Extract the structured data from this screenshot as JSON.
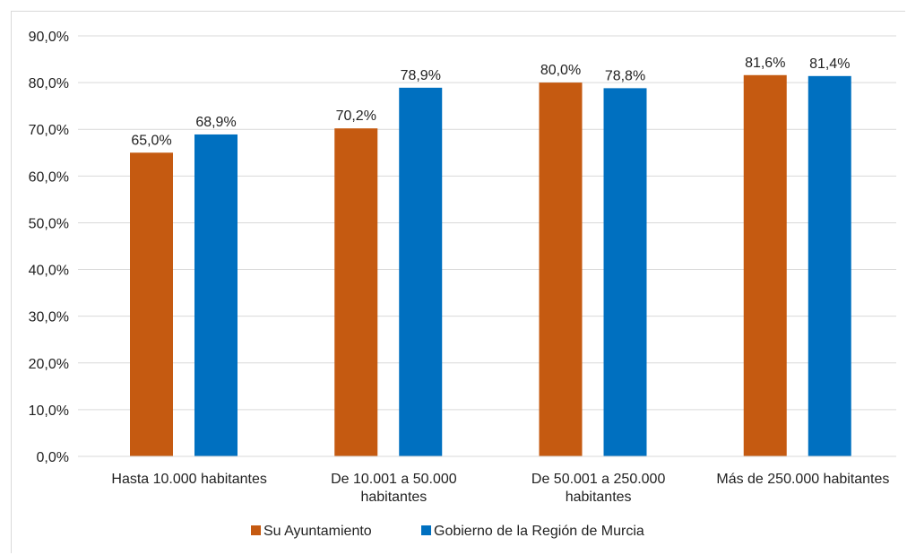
{
  "chart_data": {
    "type": "bar",
    "title": "",
    "xlabel": "",
    "ylabel": "",
    "categories": [
      [
        "Hasta 10.000 habitantes"
      ],
      [
        "De 10.001 a 50.000",
        "habitantes"
      ],
      [
        "De 50.001 a 250.000",
        "habitantes"
      ],
      [
        "Más de 250.000 habitantes"
      ]
    ],
    "series": [
      {
        "name": "Su Ayuntamiento",
        "color": "#c55a11",
        "values": [
          65.0,
          70.2,
          80.0,
          81.6
        ],
        "labels": [
          "65,0%",
          "70,2%",
          "80,0%",
          "81,6%"
        ]
      },
      {
        "name": "Gobierno de la Región de Murcia",
        "color": "#0070c0",
        "values": [
          68.9,
          78.9,
          78.8,
          81.4
        ],
        "labels": [
          "68,9%",
          "78,9%",
          "78,8%",
          "81,4%"
        ]
      }
    ],
    "ylim": [
      0,
      90
    ],
    "yticks": [
      0,
      10,
      20,
      30,
      40,
      50,
      60,
      70,
      80,
      90
    ],
    "ytick_labels": [
      "0,0%",
      "10,0%",
      "20,0%",
      "30,0%",
      "40,0%",
      "50,0%",
      "60,0%",
      "70,0%",
      "80,0%",
      "90,0%"
    ],
    "grid": true,
    "gridcolor": "#d9d9d9",
    "legend_position": "bottom"
  }
}
